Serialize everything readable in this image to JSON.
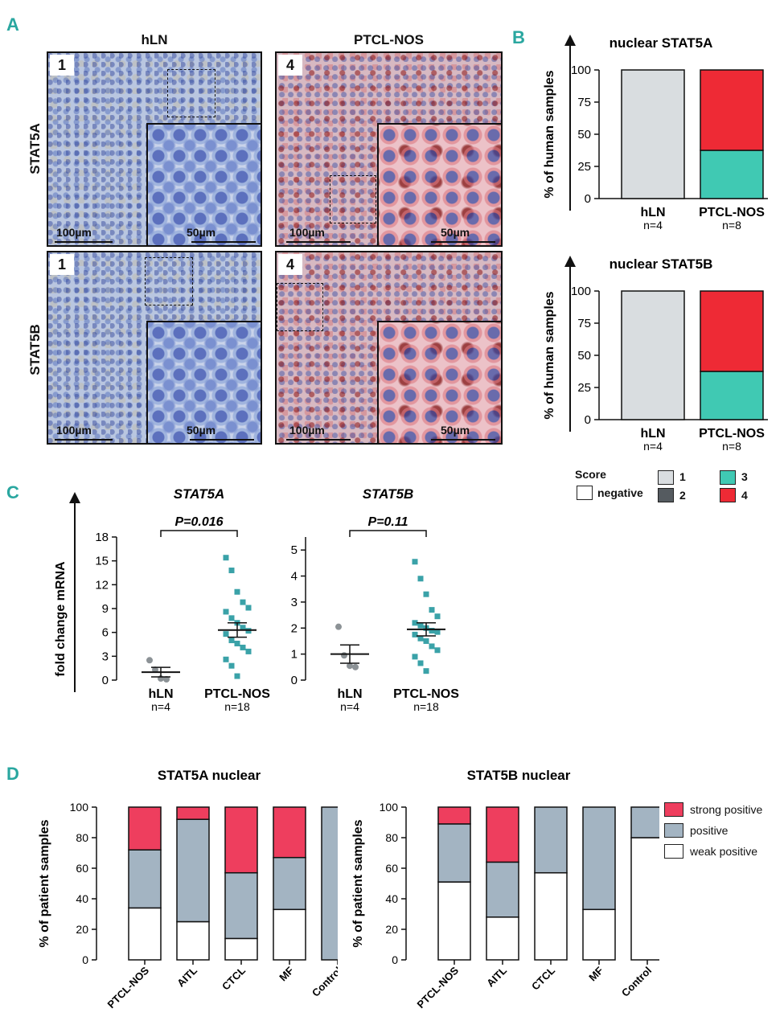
{
  "panel_letters": {
    "a": "A",
    "b": "B",
    "c": "C",
    "d": "D"
  },
  "panel_a": {
    "col_headers": [
      "hLN",
      "PTCL-NOS"
    ],
    "row_headers": [
      "STAT5A",
      "STAT5B"
    ],
    "scores": [
      "1",
      "4",
      "1",
      "4"
    ],
    "scale_large": "100µm",
    "scale_small": "50µm"
  },
  "chart_data": [
    {
      "id": "B-top",
      "type": "bar",
      "stacked": true,
      "title": "nuclear STAT5A",
      "ylabel": "% of human samples",
      "categories": [
        "hLN",
        "PTCL-NOS"
      ],
      "category_n": [
        "n=4",
        "n=8"
      ],
      "ylim": [
        0,
        100
      ],
      "yticks": [
        0,
        25,
        50,
        75,
        100
      ],
      "series": [
        {
          "name": "1",
          "color": "#d9dde0",
          "values": [
            100,
            0
          ]
        },
        {
          "name": "3",
          "color": "#40c9b3",
          "values": [
            0,
            37.5
          ]
        },
        {
          "name": "4",
          "color": "#ee2a35",
          "values": [
            0,
            62.5
          ]
        }
      ]
    },
    {
      "id": "B-bottom",
      "type": "bar",
      "stacked": true,
      "title": "nuclear STAT5B",
      "ylabel": "% of human samples",
      "categories": [
        "hLN",
        "PTCL-NOS"
      ],
      "category_n": [
        "n=4",
        "n=8"
      ],
      "ylim": [
        0,
        100
      ],
      "yticks": [
        0,
        25,
        50,
        75,
        100
      ],
      "series": [
        {
          "name": "1",
          "color": "#d9dde0",
          "values": [
            100,
            0
          ]
        },
        {
          "name": "3",
          "color": "#40c9b3",
          "values": [
            0,
            37.5
          ]
        },
        {
          "name": "4",
          "color": "#ee2a35",
          "values": [
            0,
            62.5
          ]
        }
      ]
    },
    {
      "id": "C-left",
      "type": "scatter",
      "title": "STAT5A",
      "ylabel": "fold change mRNA",
      "pvalue": "P=0.016",
      "categories": [
        "hLN",
        "PTCL-NOS"
      ],
      "category_n": [
        "n=4",
        "n=18"
      ],
      "ylim": [
        0,
        18
      ],
      "yticks": [
        0,
        3,
        6,
        9,
        12,
        15,
        18
      ],
      "groups": [
        {
          "name": "hLN",
          "color": "#8c9296",
          "marker": "circle",
          "values": [
            2.5,
            1.3,
            0.2,
            0.1
          ],
          "mean": 1.0,
          "sem": 0.6
        },
        {
          "name": "PTCL-NOS",
          "color": "#3aa2a8",
          "marker": "square",
          "values": [
            15.4,
            13.8,
            11.1,
            9.8,
            9.1,
            8.6,
            7.8,
            7.2,
            6.6,
            6.2,
            5.8,
            5.0,
            4.6,
            4.1,
            3.6,
            2.6,
            1.8,
            0.5
          ],
          "mean": 6.3,
          "sem": 0.9
        }
      ]
    },
    {
      "id": "C-right",
      "type": "scatter",
      "title": "STAT5B",
      "ylabel": "fold change mRNA",
      "pvalue": "P=0.11",
      "categories": [
        "hLN",
        "PTCL-NOS"
      ],
      "category_n": [
        "n=4",
        "n=18"
      ],
      "ylim": [
        0,
        5.5
      ],
      "yticks": [
        0,
        1,
        2,
        3,
        4,
        5
      ],
      "groups": [
        {
          "name": "hLN",
          "color": "#8c9296",
          "marker": "circle",
          "values": [
            2.05,
            0.95,
            0.55,
            0.5
          ],
          "mean": 1.0,
          "sem": 0.35
        },
        {
          "name": "PTCL-NOS",
          "color": "#3aa2a8",
          "marker": "square",
          "values": [
            4.55,
            3.9,
            3.3,
            2.7,
            2.45,
            2.2,
            2.1,
            2.0,
            1.9,
            1.85,
            1.75,
            1.6,
            1.5,
            1.3,
            1.15,
            0.9,
            0.65,
            0.35
          ],
          "mean": 1.95,
          "sem": 0.25
        }
      ]
    },
    {
      "id": "D-left",
      "type": "bar",
      "stacked": true,
      "title": "STAT5A nuclear",
      "ylabel": "% of patient samples",
      "categories": [
        "PTCL-NOS",
        "AITL",
        "CTCL",
        "MF",
        "Control"
      ],
      "ylim": [
        0,
        100
      ],
      "yticks": [
        0,
        20,
        40,
        60,
        80,
        100
      ],
      "series": [
        {
          "name": "weak positive",
          "color": "#ffffff",
          "values": [
            34,
            25,
            14,
            33,
            0
          ]
        },
        {
          "name": "positive",
          "color": "#a3b4c2",
          "values": [
            38,
            67,
            43,
            34,
            100
          ]
        },
        {
          "name": "strong positive",
          "color": "#ee3e5e",
          "values": [
            28,
            8,
            43,
            33,
            0
          ]
        }
      ]
    },
    {
      "id": "D-right",
      "type": "bar",
      "stacked": true,
      "title": "STAT5B nuclear",
      "ylabel": "% of patient samples",
      "categories": [
        "PTCL-NOS",
        "AITL",
        "CTCL",
        "MF",
        "Control"
      ],
      "ylim": [
        0,
        100
      ],
      "yticks": [
        0,
        20,
        40,
        60,
        80,
        100
      ],
      "series": [
        {
          "name": "weak positive",
          "color": "#ffffff",
          "values": [
            51,
            28,
            57,
            33,
            80
          ]
        },
        {
          "name": "positive",
          "color": "#a3b4c2",
          "values": [
            38,
            36,
            43,
            67,
            20
          ]
        },
        {
          "name": "strong positive",
          "color": "#ee3e5e",
          "values": [
            11,
            36,
            0,
            0,
            0
          ]
        }
      ]
    }
  ],
  "legend_b": {
    "title": "Score",
    "items": [
      {
        "label": "negative",
        "color": "#ffffff"
      },
      {
        "label": "1",
        "color": "#d9dde0"
      },
      {
        "label": "2",
        "color": "#555b60"
      },
      {
        "label": "3",
        "color": "#40c9b3"
      },
      {
        "label": "4",
        "color": "#ee2a35"
      }
    ]
  },
  "legend_d": {
    "items": [
      {
        "label": "strong positive",
        "color": "#ee3e5e"
      },
      {
        "label": "positive",
        "color": "#a3b4c2"
      },
      {
        "label": "weak positive",
        "color": "#ffffff"
      }
    ]
  }
}
